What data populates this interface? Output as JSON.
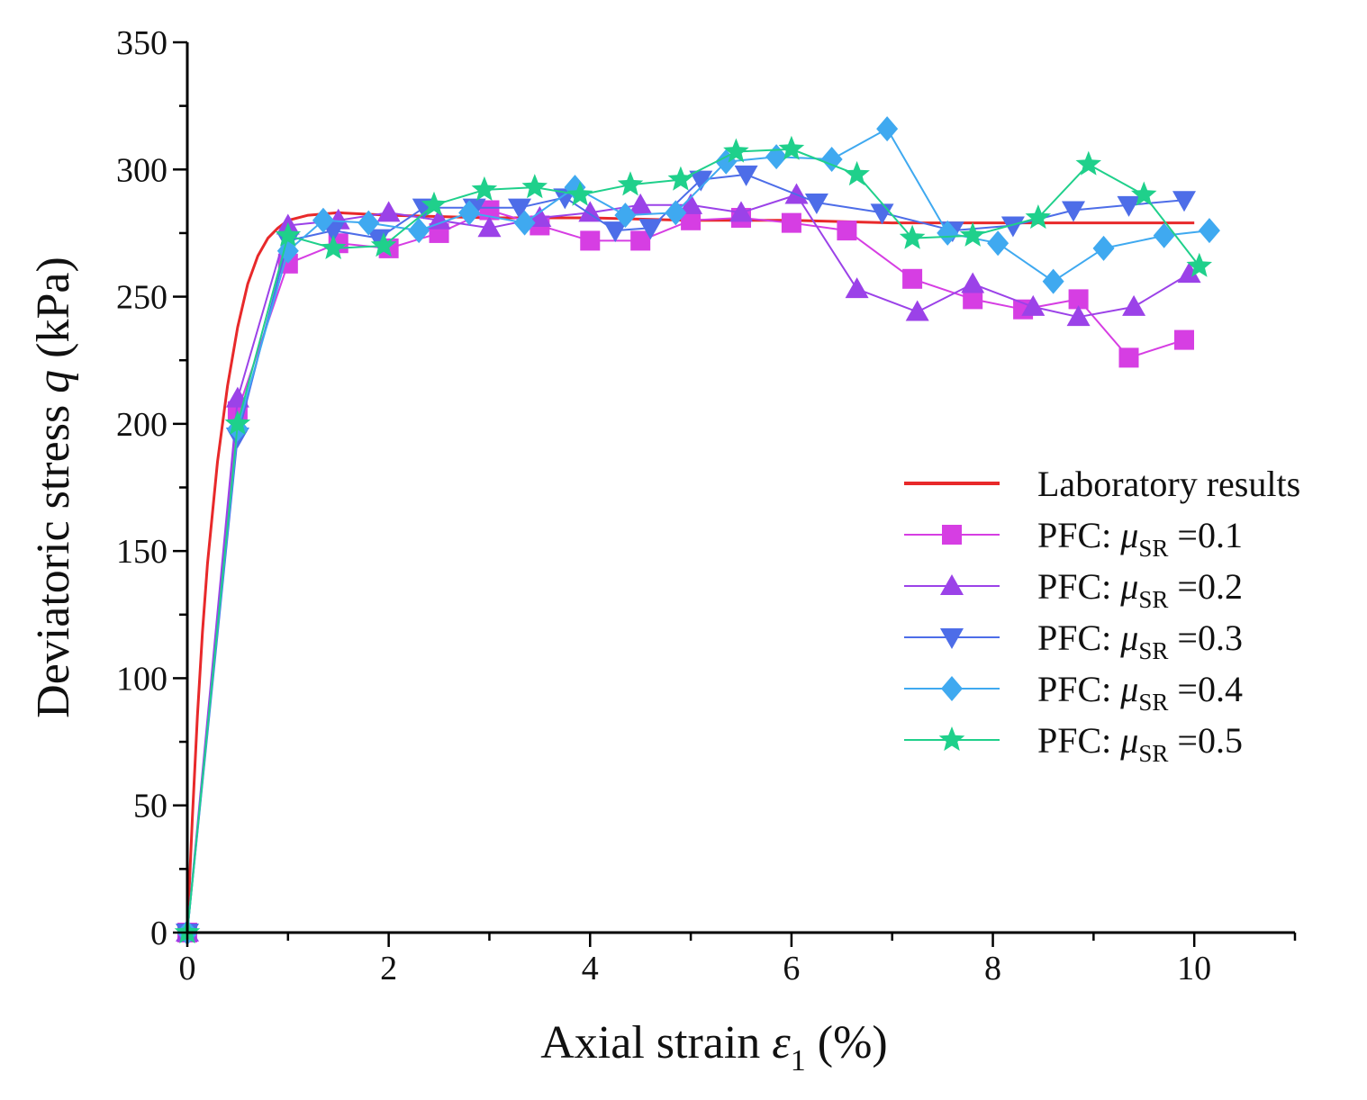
{
  "chart_data": {
    "type": "line",
    "xlabel": {
      "prefix": "Axial strain ",
      "symbol": "ε",
      "subscript": "1",
      "suffix": " (%)"
    },
    "ylabel": {
      "prefix": "Deviatoric stress ",
      "symbol": "q",
      "suffix": " (kPa)"
    },
    "xlim": [
      0,
      11
    ],
    "ylim": [
      0,
      350
    ],
    "xticks": [
      0,
      2,
      4,
      6,
      8,
      10
    ],
    "yticks": [
      0,
      50,
      100,
      150,
      200,
      250,
      300,
      350
    ],
    "grid": false,
    "legend_position": "right",
    "series": [
      {
        "name": "Laboratory results",
        "label_parts": [
          "Laboratory results"
        ],
        "color": "#e8292a",
        "marker": "none",
        "x": [
          0,
          0.05,
          0.1,
          0.15,
          0.2,
          0.3,
          0.4,
          0.5,
          0.6,
          0.7,
          0.8,
          0.9,
          1.0,
          1.2,
          1.5,
          2.0,
          3.0,
          4.0,
          5.0,
          6.0,
          7.0,
          8.0,
          9.0,
          10.0
        ],
        "y": [
          0,
          45,
          85,
          118,
          145,
          185,
          215,
          238,
          255,
          266,
          273,
          277,
          280,
          282,
          283,
          282,
          281,
          281,
          280,
          280,
          279,
          279,
          279,
          279
        ]
      },
      {
        "name": "PFC: μSR =0.1",
        "label_parts": [
          "PFC: ",
          "μ",
          "SR",
          " =0.1"
        ],
        "color": "#d63ee3",
        "marker": "square",
        "x": [
          0,
          0.5,
          1.0,
          1.5,
          2.0,
          2.5,
          3.0,
          3.5,
          4.0,
          4.5,
          5.0,
          5.5,
          6.0,
          6.55,
          7.2,
          7.8,
          8.3,
          8.85,
          9.35,
          9.9
        ],
        "y": [
          0,
          205,
          263,
          271,
          269,
          275,
          284,
          278,
          272,
          272,
          280,
          281,
          279,
          276,
          257,
          249,
          245,
          249,
          226,
          233
        ]
      },
      {
        "name": "PFC: μSR =0.2",
        "label_parts": [
          "PFC: ",
          "μ",
          "SR",
          " =0.2"
        ],
        "color": "#9b42e8",
        "marker": "triangle-up",
        "x": [
          0,
          0.5,
          1.0,
          1.5,
          2.0,
          2.5,
          3.0,
          3.5,
          4.0,
          4.5,
          5.0,
          5.5,
          6.05,
          6.65,
          7.25,
          7.8,
          8.4,
          8.85,
          9.4,
          9.95
        ],
        "y": [
          0,
          210,
          278,
          280,
          283,
          280,
          277,
          281,
          283,
          286,
          286,
          283,
          290,
          253,
          244,
          255,
          246,
          242,
          246,
          259
        ]
      },
      {
        "name": "PFC: μSR =0.3",
        "label_parts": [
          "PFC: ",
          "μ",
          "SR",
          " =0.3"
        ],
        "color": "#4d6de8",
        "marker": "triangle-down",
        "x": [
          0,
          0.5,
          1.0,
          1.45,
          1.9,
          2.35,
          2.85,
          3.3,
          3.75,
          4.25,
          4.6,
          5.1,
          5.55,
          6.25,
          6.9,
          7.6,
          8.2,
          8.8,
          9.35,
          9.9
        ],
        "y": [
          0,
          195,
          272,
          276,
          273,
          285,
          285,
          285,
          289,
          276,
          277,
          296,
          298,
          287,
          283,
          276,
          278,
          284,
          286,
          288
        ]
      },
      {
        "name": "PFC: μSR =0.4",
        "label_parts": [
          "PFC: ",
          "μ",
          "SR",
          " =0.4"
        ],
        "color": "#3fa9f0",
        "marker": "diamond",
        "x": [
          0,
          0.5,
          1.0,
          1.35,
          1.8,
          2.3,
          2.8,
          3.35,
          3.85,
          4.35,
          4.85,
          5.35,
          5.85,
          6.4,
          6.95,
          7.55,
          8.05,
          8.6,
          9.1,
          9.7,
          10.15
        ],
        "y": [
          0,
          198,
          268,
          280,
          279,
          276,
          283,
          279,
          293,
          282,
          283,
          303,
          305,
          304,
          316,
          275,
          271,
          256,
          269,
          274,
          276
        ]
      },
      {
        "name": "PFC: μSR =0.5",
        "label_parts": [
          "PFC: ",
          "μ",
          "SR",
          " =0.5"
        ],
        "color": "#1fd08b",
        "marker": "star",
        "x": [
          0,
          0.5,
          1.0,
          1.45,
          1.95,
          2.45,
          2.95,
          3.45,
          3.9,
          4.4,
          4.9,
          5.45,
          6.0,
          6.65,
          7.2,
          7.8,
          8.45,
          8.95,
          9.5,
          10.05
        ],
        "y": [
          0,
          200,
          274,
          269,
          270,
          286,
          292,
          293,
          290,
          294,
          296,
          307,
          308,
          298,
          273,
          274,
          281,
          302,
          290,
          262
        ]
      }
    ]
  }
}
